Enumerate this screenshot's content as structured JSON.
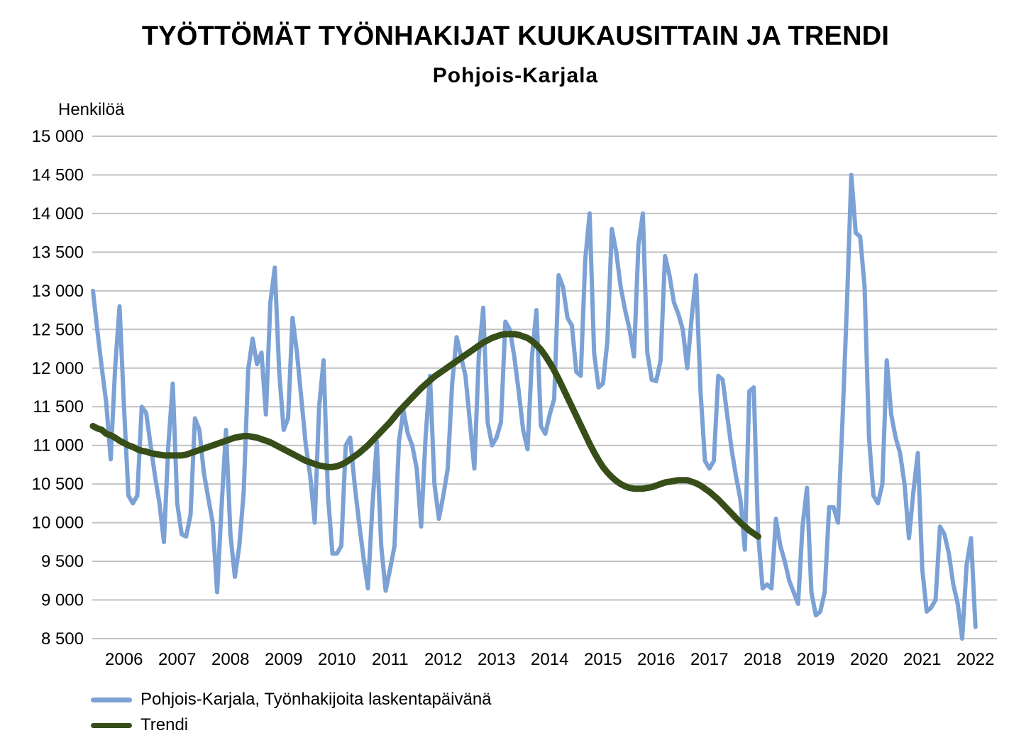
{
  "title": "TYÖTTÖMÄT TYÖNHAKIJAT KUUKAUSITTAIN JA TRENDI",
  "subtitle": "Pohjois-Karjala",
  "chart_data": {
    "type": "line",
    "title": "TYÖTTÖMÄT TYÖNHAKIJAT KUUKAUSITTAIN JA TRENDI",
    "subtitle": "Pohjois-Karjala",
    "ylabel": "Henkilöä",
    "xlabel": "",
    "ylim": [
      8500,
      15000
    ],
    "y_ticks": [
      8500,
      9000,
      9500,
      10000,
      10500,
      11000,
      11500,
      12000,
      12500,
      13000,
      13500,
      14000,
      14500,
      15000
    ],
    "y_tick_labels": [
      "8 500",
      "9 000",
      "9 500",
      "10 000",
      "10 500",
      "11 000",
      "11 500",
      "12 000",
      "12 500",
      "13 000",
      "13 500",
      "14 000",
      "14 500",
      "15 000"
    ],
    "x_tick_labels": [
      "2006",
      "2007",
      "2008",
      "2009",
      "2010",
      "2011",
      "2012",
      "2013",
      "2014",
      "2015",
      "2016",
      "2017",
      "2018",
      "2019",
      "2020",
      "2021",
      "2022"
    ],
    "x_start": "2006-01",
    "x_end": "2022-12",
    "grid": "horizontal",
    "legend_position": "bottom-left",
    "colors": {
      "monthly": "#7ba1d5",
      "trend": "#374e19",
      "grid": "#c2c2c2"
    },
    "series": [
      {
        "name": "Pohjois-Karjala, Työnhakijoita laskentapäivänä",
        "start": "2005-12",
        "values": [
          13000,
          12480,
          12000,
          11550,
          10820,
          12000,
          12800,
          11500,
          10350,
          10250,
          10350,
          11500,
          11420,
          11000,
          10600,
          10250,
          9750,
          11000,
          11800,
          10250,
          9850,
          9820,
          10100,
          11350,
          11200,
          10650,
          10320,
          10000,
          9100,
          10200,
          11200,
          9850,
          9300,
          9700,
          10400,
          11980,
          12380,
          12050,
          12200,
          11400,
          12850,
          13300,
          11950,
          11200,
          11350,
          12650,
          12200,
          11600,
          11000,
          10600,
          10000,
          11500,
          12100,
          10350,
          9600,
          9600,
          9700,
          11000,
          11100,
          10500,
          10000,
          9550,
          9150,
          10200,
          11050,
          9700,
          9120,
          9400,
          9700,
          11050,
          11450,
          11150,
          11000,
          10700,
          9950,
          11100,
          11900,
          10500,
          10050,
          10350,
          10700,
          11800,
          12400,
          12150,
          11900,
          11300,
          10700,
          12150,
          12780,
          11300,
          11000,
          11100,
          11300,
          12600,
          12500,
          12150,
          11700,
          11200,
          10950,
          12150,
          12750,
          11250,
          11150,
          11400,
          11600,
          13200,
          13050,
          12650,
          12550,
          11950,
          11900,
          13400,
          14000,
          12200,
          11750,
          11800,
          12350,
          13800,
          13500,
          13050,
          12750,
          12500,
          12150,
          13600,
          14000,
          12200,
          11850,
          11830,
          12100,
          13450,
          13200,
          12850,
          12700,
          12500,
          12000,
          12650,
          13200,
          11700,
          10800,
          10700,
          10800,
          11900,
          11850,
          11400,
          10950,
          10600,
          10300,
          9650,
          11700,
          11750,
          9850,
          9150,
          9200,
          9150,
          10050,
          9700,
          9500,
          9250,
          9100,
          8950,
          9950,
          10450,
          9100,
          8800,
          8850,
          9100,
          10200,
          10200,
          10000,
          11300,
          12800,
          14500,
          13750,
          13700,
          13050,
          11100,
          10350,
          10250,
          10500,
          12100,
          11400,
          11100,
          10900,
          10500,
          9800,
          10400,
          10900,
          9400,
          8850,
          8900,
          9000,
          9950,
          9850,
          9600,
          9200,
          8950,
          8500,
          9450,
          9800,
          8650
        ]
      },
      {
        "name": "Trendi",
        "start": "2005-12",
        "values": [
          11250,
          11220,
          11200,
          11150,
          11130,
          11100,
          11060,
          11030,
          11000,
          10980,
          10950,
          10930,
          10920,
          10900,
          10890,
          10880,
          10870,
          10870,
          10870,
          10870,
          10870,
          10880,
          10900,
          10920,
          10940,
          10960,
          10980,
          11000,
          11020,
          11040,
          11060,
          11080,
          11100,
          11110,
          11120,
          11120,
          11110,
          11100,
          11080,
          11060,
          11040,
          11010,
          10980,
          10950,
          10920,
          10890,
          10860,
          10830,
          10800,
          10780,
          10760,
          10740,
          10730,
          10720,
          10720,
          10730,
          10750,
          10780,
          10820,
          10860,
          10900,
          10950,
          11000,
          11060,
          11120,
          11180,
          11240,
          11300,
          11370,
          11440,
          11500,
          11560,
          11620,
          11680,
          11740,
          11790,
          11840,
          11890,
          11930,
          11970,
          12010,
          12050,
          12090,
          12130,
          12170,
          12210,
          12250,
          12290,
          12330,
          12360,
          12390,
          12410,
          12430,
          12440,
          12440,
          12440,
          12430,
          12410,
          12390,
          12350,
          12300,
          12240,
          12160,
          12070,
          11970,
          11860,
          11740,
          11620,
          11500,
          11380,
          11260,
          11140,
          11020,
          10910,
          10810,
          10720,
          10650,
          10590,
          10540,
          10500,
          10470,
          10450,
          10440,
          10440,
          10440,
          10450,
          10460,
          10480,
          10500,
          10520,
          10530,
          10540,
          10550,
          10550,
          10550,
          10530,
          10510,
          10480,
          10440,
          10400,
          10350,
          10300,
          10240,
          10180,
          10120,
          10060,
          10000,
          9950,
          9900,
          9860,
          9820
        ]
      }
    ]
  },
  "legend": {
    "items": [
      {
        "label": "Pohjois-Karjala, Työnhakijoita laskentapäivänä",
        "color": "#7ba1d5"
      },
      {
        "label": "Trendi",
        "color": "#374e19"
      }
    ]
  }
}
